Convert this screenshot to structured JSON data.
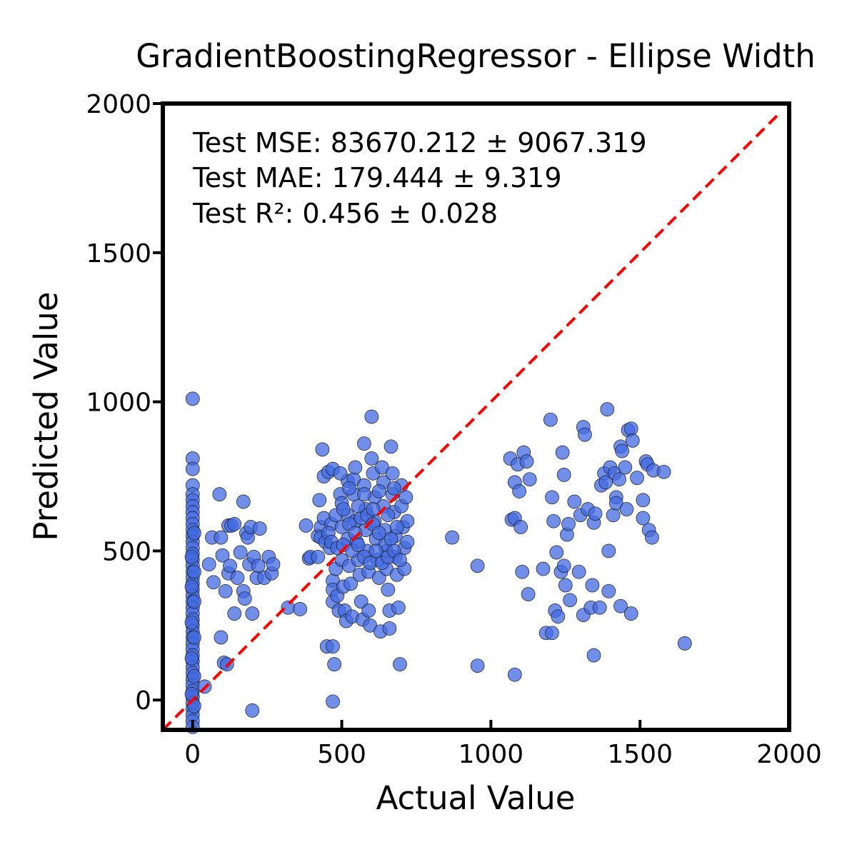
{
  "chart_data": {
    "type": "scatter",
    "title": "GradientBoostingRegressor - Ellipse Width",
    "xlabel": "Actual Value",
    "ylabel": "Predicted Value",
    "xlim": [
      -100,
      2000
    ],
    "ylim": [
      -100,
      2000
    ],
    "x_ticks": [
      "0",
      "500",
      "1000",
      "1500",
      "2000"
    ],
    "y_ticks": [
      "0",
      "500",
      "1000",
      "1500",
      "2000"
    ],
    "x_tick_values": [
      0,
      500,
      1000,
      1500,
      2000
    ],
    "y_tick_values": [
      0,
      500,
      1000,
      1500,
      2000
    ],
    "grid": false,
    "legend": "none",
    "annotations": [
      "Test MSE: 83670.212 ± 9067.319",
      "Test MAE: 179.444 ± 9.319",
      "Test R²: 0.456 ± 0.028"
    ],
    "reference_line": {
      "style": "dashed",
      "color": "#ff0000",
      "x": [
        -100,
        1960
      ],
      "y": [
        -100,
        1960
      ]
    },
    "point_color": "#4169e1",
    "points": [
      [
        0,
        1010
      ],
      [
        0,
        810
      ],
      [
        0,
        775
      ],
      [
        0,
        720
      ],
      [
        0,
        690
      ],
      [
        0,
        670
      ],
      [
        0,
        650
      ],
      [
        0,
        630
      ],
      [
        0,
        610
      ],
      [
        0,
        590
      ],
      [
        0,
        570
      ],
      [
        0,
        550
      ],
      [
        0,
        530
      ],
      [
        0,
        510
      ],
      [
        0,
        490
      ],
      [
        0,
        470
      ],
      [
        0,
        450
      ],
      [
        0,
        430
      ],
      [
        0,
        410
      ],
      [
        0,
        390
      ],
      [
        0,
        370
      ],
      [
        0,
        350
      ],
      [
        0,
        330
      ],
      [
        0,
        310
      ],
      [
        0,
        290
      ],
      [
        0,
        270
      ],
      [
        0,
        250
      ],
      [
        0,
        230
      ],
      [
        0,
        210
      ],
      [
        0,
        190
      ],
      [
        0,
        170
      ],
      [
        0,
        150
      ],
      [
        0,
        130
      ],
      [
        0,
        110
      ],
      [
        0,
        90
      ],
      [
        0,
        70
      ],
      [
        0,
        50
      ],
      [
        0,
        30
      ],
      [
        0,
        10
      ],
      [
        0,
        -10
      ],
      [
        0,
        -30
      ],
      [
        0,
        -50
      ],
      [
        0,
        -70
      ],
      [
        0,
        -90
      ],
      [
        5,
        560
      ],
      [
        5,
        430
      ],
      [
        5,
        330
      ],
      [
        5,
        210
      ],
      [
        5,
        80
      ],
      [
        5,
        -20
      ],
      [
        -3,
        480
      ],
      [
        -3,
        380
      ],
      [
        -3,
        260
      ],
      [
        -3,
        140
      ],
      [
        -3,
        20
      ],
      [
        40,
        45
      ],
      [
        55,
        455
      ],
      [
        65,
        545
      ],
      [
        70,
        395
      ],
      [
        90,
        690
      ],
      [
        95,
        545
      ],
      [
        95,
        210
      ],
      [
        100,
        485
      ],
      [
        105,
        125
      ],
      [
        110,
        365
      ],
      [
        115,
        120
      ],
      [
        120,
        425
      ],
      [
        120,
        585
      ],
      [
        125,
        450
      ],
      [
        130,
        585
      ],
      [
        140,
        590
      ],
      [
        140,
        290
      ],
      [
        150,
        410
      ],
      [
        160,
        495
      ],
      [
        170,
        665
      ],
      [
        170,
        365
      ],
      [
        175,
        340
      ],
      [
        180,
        560
      ],
      [
        185,
        545
      ],
      [
        190,
        455
      ],
      [
        195,
        580
      ],
      [
        200,
        290
      ],
      [
        205,
        480
      ],
      [
        215,
        410
      ],
      [
        220,
        450
      ],
      [
        225,
        575
      ],
      [
        240,
        410
      ],
      [
        255,
        480
      ],
      [
        265,
        425
      ],
      [
        270,
        455
      ],
      [
        200,
        -35
      ],
      [
        320,
        310
      ],
      [
        360,
        305
      ],
      [
        380,
        585
      ],
      [
        390,
        475
      ],
      [
        395,
        480
      ],
      [
        420,
        550
      ],
      [
        420,
        480
      ],
      [
        425,
        670
      ],
      [
        430,
        580
      ],
      [
        430,
        545
      ],
      [
        435,
        840
      ],
      [
        440,
        750
      ],
      [
        440,
        610
      ],
      [
        445,
        530
      ],
      [
        450,
        180
      ],
      [
        455,
        765
      ],
      [
        460,
        510
      ],
      [
        465,
        590
      ],
      [
        470,
        775
      ],
      [
        470,
        400
      ],
      [
        470,
        370
      ],
      [
        470,
        330
      ],
      [
        470,
        180
      ],
      [
        475,
        120
      ],
      [
        470,
        -5
      ],
      [
        480,
        620
      ],
      [
        480,
        440
      ],
      [
        485,
        350
      ],
      [
        490,
        300
      ],
      [
        495,
        690
      ],
      [
        500,
        660
      ],
      [
        500,
        580
      ],
      [
        500,
        470
      ],
      [
        505,
        380
      ],
      [
        510,
        300
      ],
      [
        515,
        265
      ],
      [
        520,
        735
      ],
      [
        520,
        620
      ],
      [
        520,
        540
      ],
      [
        525,
        450
      ],
      [
        530,
        390
      ],
      [
        535,
        280
      ],
      [
        540,
        740
      ],
      [
        540,
        690
      ],
      [
        545,
        600
      ],
      [
        550,
        530
      ],
      [
        555,
        470
      ],
      [
        560,
        420
      ],
      [
        565,
        330
      ],
      [
        570,
        270
      ],
      [
        575,
        860
      ],
      [
        575,
        720
      ],
      [
        580,
        640
      ],
      [
        580,
        570
      ],
      [
        585,
        500
      ],
      [
        590,
        430
      ],
      [
        590,
        300
      ],
      [
        595,
        250
      ],
      [
        600,
        810
      ],
      [
        600,
        950
      ],
      [
        605,
        760
      ],
      [
        610,
        680
      ],
      [
        610,
        600
      ],
      [
        615,
        540
      ],
      [
        620,
        470
      ],
      [
        625,
        410
      ],
      [
        630,
        230
      ],
      [
        635,
        780
      ],
      [
        640,
        730
      ],
      [
        640,
        650
      ],
      [
        645,
        570
      ],
      [
        650,
        500
      ],
      [
        650,
        440
      ],
      [
        655,
        370
      ],
      [
        660,
        300
      ],
      [
        665,
        850
      ],
      [
        670,
        760
      ],
      [
        670,
        690
      ],
      [
        675,
        630
      ],
      [
        680,
        550
      ],
      [
        680,
        480
      ],
      [
        685,
        420
      ],
      [
        690,
        310
      ],
      [
        695,
        120
      ],
      [
        660,
        240
      ],
      [
        700,
        720
      ],
      [
        700,
        650
      ],
      [
        705,
        580
      ],
      [
        710,
        510
      ],
      [
        710,
        440
      ],
      [
        715,
        680
      ],
      [
        720,
        600
      ],
      [
        720,
        530
      ],
      [
        455,
        560
      ],
      [
        465,
        530
      ],
      [
        485,
        510
      ],
      [
        505,
        520
      ],
      [
        525,
        590
      ],
      [
        545,
        560
      ],
      [
        565,
        610
      ],
      [
        585,
        620
      ],
      [
        605,
        590
      ],
      [
        625,
        560
      ],
      [
        645,
        520
      ],
      [
        665,
        540
      ],
      [
        685,
        580
      ],
      [
        535,
        500
      ],
      [
        555,
        520
      ],
      [
        575,
        480
      ],
      [
        595,
        460
      ],
      [
        615,
        500
      ],
      [
        635,
        460
      ],
      [
        655,
        480
      ],
      [
        675,
        500
      ],
      [
        695,
        470
      ],
      [
        505,
        640
      ],
      [
        555,
        650
      ],
      [
        605,
        640
      ],
      [
        655,
        620
      ],
      [
        575,
        690
      ],
      [
        625,
        700
      ],
      [
        675,
        710
      ],
      [
        525,
        710
      ],
      [
        495,
        760
      ],
      [
        545,
        780
      ],
      [
        870,
        545
      ],
      [
        955,
        450
      ],
      [
        955,
        115
      ],
      [
        1065,
        810
      ],
      [
        1070,
        605
      ],
      [
        1080,
        730
      ],
      [
        1080,
        610
      ],
      [
        1080,
        85
      ],
      [
        1090,
        790
      ],
      [
        1095,
        700
      ],
      [
        1100,
        580
      ],
      [
        1105,
        430
      ],
      [
        1110,
        830
      ],
      [
        1120,
        800
      ],
      [
        1125,
        355
      ],
      [
        1130,
        740
      ],
      [
        1175,
        440
      ],
      [
        1185,
        225
      ],
      [
        1200,
        940
      ],
      [
        1205,
        680
      ],
      [
        1205,
        225
      ],
      [
        1210,
        600
      ],
      [
        1215,
        300
      ],
      [
        1220,
        495
      ],
      [
        1225,
        280
      ],
      [
        1235,
        430
      ],
      [
        1240,
        830
      ],
      [
        1245,
        755
      ],
      [
        1245,
        450
      ],
      [
        1250,
        385
      ],
      [
        1255,
        555
      ],
      [
        1260,
        590
      ],
      [
        1265,
        335
      ],
      [
        1280,
        665
      ],
      [
        1295,
        430
      ],
      [
        1300,
        620
      ],
      [
        1310,
        915
      ],
      [
        1310,
        285
      ],
      [
        1315,
        890
      ],
      [
        1325,
        640
      ],
      [
        1335,
        310
      ],
      [
        1340,
        385
      ],
      [
        1345,
        150
      ],
      [
        1345,
        595
      ],
      [
        1350,
        625
      ],
      [
        1365,
        310
      ],
      [
        1370,
        720
      ],
      [
        1380,
        760
      ],
      [
        1385,
        730
      ],
      [
        1390,
        975
      ],
      [
        1395,
        500
      ],
      [
        1395,
        365
      ],
      [
        1400,
        780
      ],
      [
        1410,
        620
      ],
      [
        1415,
        760
      ],
      [
        1420,
        680
      ],
      [
        1420,
        660
      ],
      [
        1430,
        740
      ],
      [
        1435,
        850
      ],
      [
        1435,
        315
      ],
      [
        1440,
        835
      ],
      [
        1450,
        780
      ],
      [
        1455,
        640
      ],
      [
        1460,
        905
      ],
      [
        1470,
        910
      ],
      [
        1470,
        290
      ],
      [
        1475,
        870
      ],
      [
        1490,
        745
      ],
      [
        1510,
        670
      ],
      [
        1510,
        610
      ],
      [
        1520,
        800
      ],
      [
        1525,
        790
      ],
      [
        1530,
        570
      ],
      [
        1540,
        545
      ],
      [
        1545,
        770
      ],
      [
        1580,
        765
      ],
      [
        1650,
        190
      ]
    ]
  }
}
